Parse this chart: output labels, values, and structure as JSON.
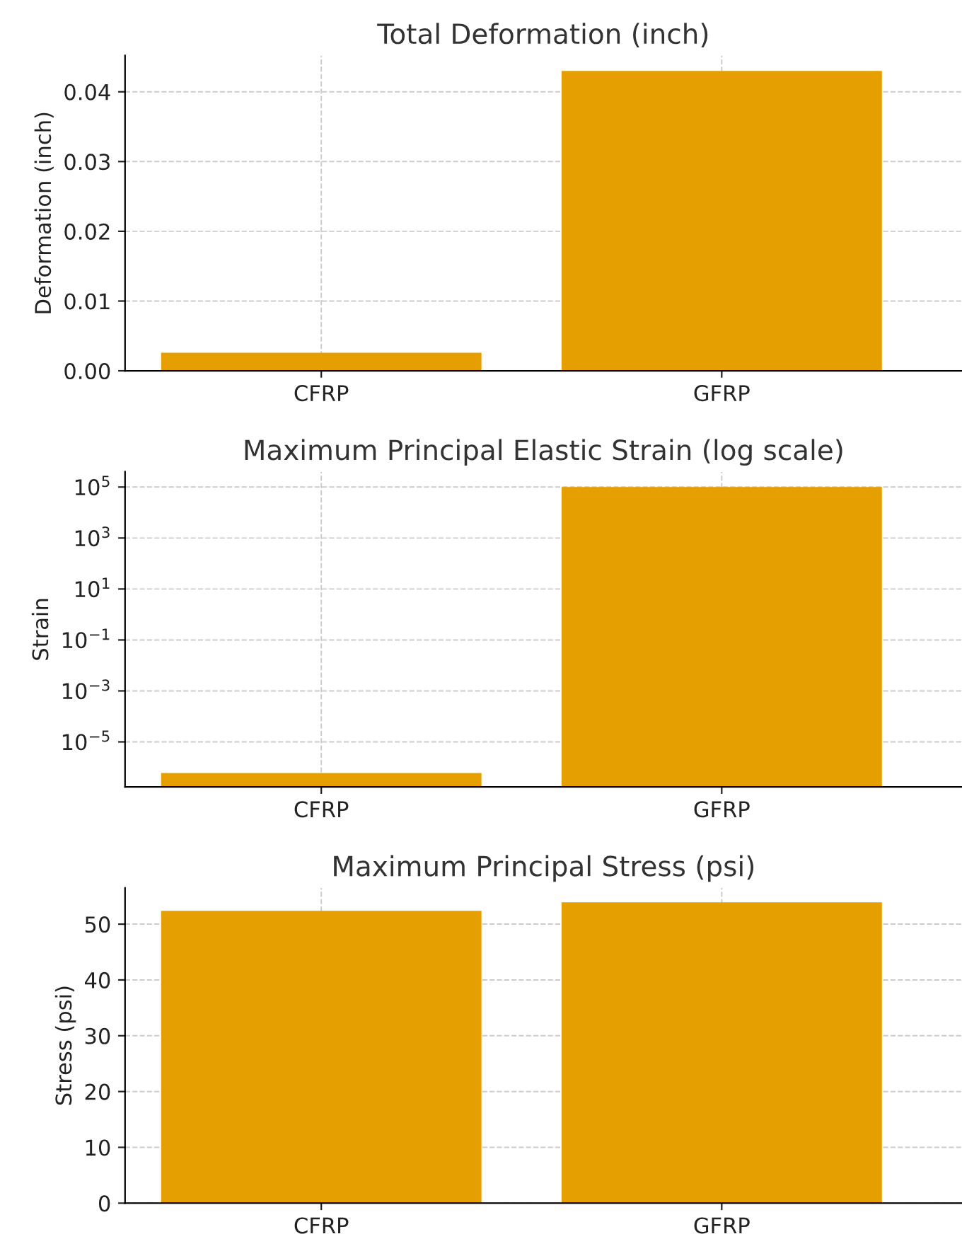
{
  "chart_data": [
    {
      "type": "bar",
      "title": "Total Deformation (inch)",
      "ylabel": "Deformation (inch)",
      "categories": [
        "CFRP",
        "GFRP"
      ],
      "values": [
        0.0026,
        0.043
      ],
      "color": "#e69f00",
      "ylim": [
        0,
        0.0452
      ],
      "yticks": [
        {
          "value": 0,
          "label": "0.00"
        },
        {
          "value": 0.01,
          "label": "0.01"
        },
        {
          "value": 0.02,
          "label": "0.02"
        },
        {
          "value": 0.03,
          "label": "0.03"
        },
        {
          "value": 0.04,
          "label": "0.04"
        }
      ],
      "grid": true
    },
    {
      "type": "bar",
      "title": "Maximum Principal Elastic Strain (log scale)",
      "ylabel": "Strain",
      "categories": [
        "CFRP",
        "GFRP"
      ],
      "values": [
        6e-07,
        100000
      ],
      "color": "#e69f00",
      "log": "y",
      "ylim": [
        1.7e-07,
        400000.0
      ],
      "yticks": [
        {
          "value": 1e-05,
          "label": "10$^{−5}$"
        },
        {
          "value": 0.001,
          "label": "10$^{−3}$"
        },
        {
          "value": 0.1,
          "label": "10$^{−1}$"
        },
        {
          "value": 10,
          "label": "10$^{1}$"
        },
        {
          "value": 1000,
          "label": "10$^{3}$"
        },
        {
          "value": 100000,
          "label": "10$^{5}$"
        }
      ],
      "grid": true
    },
    {
      "type": "bar",
      "title": "Maximum Principal Stress (psi)",
      "ylabel": "Stress (psi)",
      "categories": [
        "CFRP",
        "GFRP"
      ],
      "values": [
        52.4,
        53.9
      ],
      "color": "#e69f00",
      "ylim": [
        0,
        56.5
      ],
      "yticks": [
        0,
        10,
        20,
        30,
        40,
        50
      ],
      "grid": true
    }
  ]
}
